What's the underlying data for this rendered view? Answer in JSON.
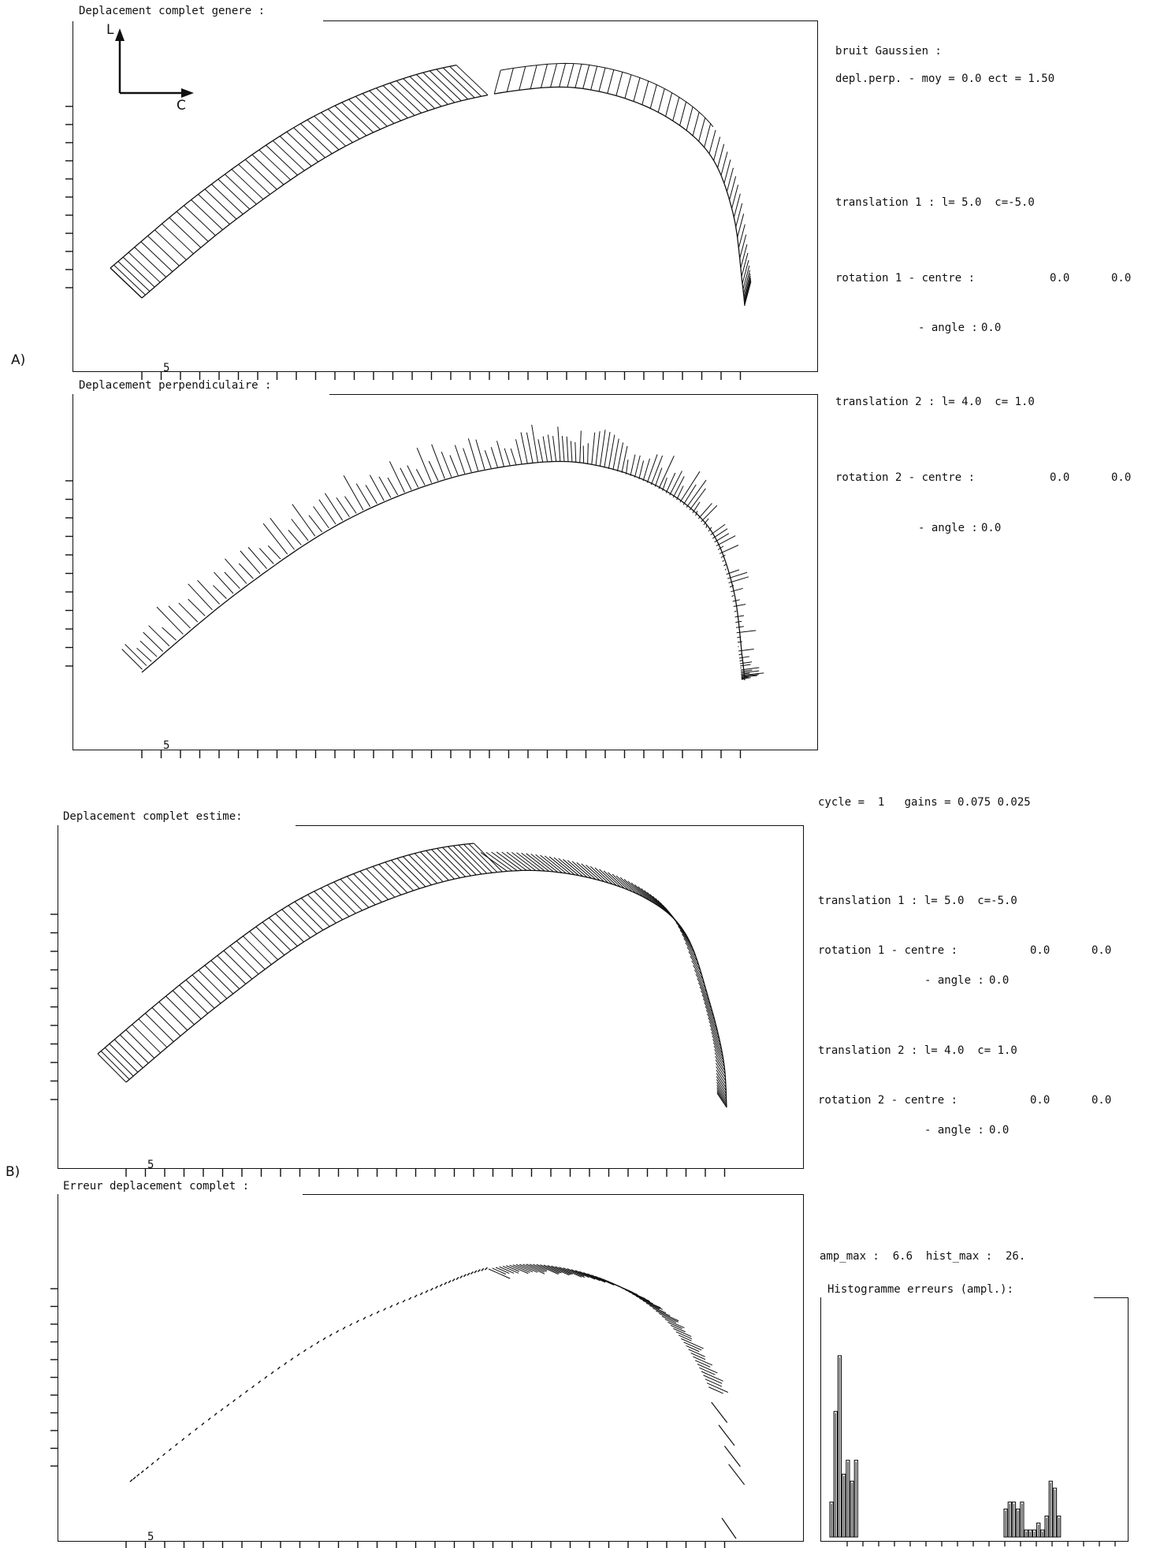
{
  "section_a_label": "A)",
  "section_b_label": "B)",
  "axis_labels": {
    "l": "L",
    "c": "C"
  },
  "tick_label": "5",
  "panels": {
    "gen": {
      "title": "Deplacement complet genere :"
    },
    "perp": {
      "title": "Deplacement perpendiculaire :"
    },
    "est": {
      "title": "Deplacement complet estime:"
    },
    "err": {
      "title": "Erreur deplacement complet :"
    },
    "hist": {
      "title": "Histogramme erreurs (ampl.):"
    }
  },
  "params_a": {
    "noise_title": "bruit Gaussien :",
    "noise_line": "depl.perp. - moy = 0.0 ect = 1.50",
    "translation1": "translation 1 : l= 5.0  c=-5.0",
    "rotation1_centre": "rotation 1 - centre :",
    "rotation1_centre_vals": [
      "0.0",
      "0.0"
    ],
    "rotation1_angle": "- angle :",
    "rotation1_angle_val": "0.0",
    "translation2": "translation 2 : l= 4.0  c= 1.0",
    "rotation2_centre": "rotation 2 - centre :",
    "rotation2_centre_vals": [
      "0.0",
      "0.0"
    ],
    "rotation2_angle": "- angle :",
    "rotation2_angle_val": "0.0"
  },
  "params_b": {
    "cycle_line": "cycle =  1   gains = 0.075 0.025",
    "translation1": "translation 1 : l= 5.0  c=-5.0",
    "rotation1_centre": "rotation 1 - centre :",
    "rotation1_centre_vals": [
      "0.0",
      "0.0"
    ],
    "rotation1_angle": "- angle :",
    "rotation1_angle_val": "0.0",
    "translation2": "translation 2 : l= 4.0  c= 1.0",
    "rotation2_centre": "rotation 2 - centre :",
    "rotation2_centre_vals": [
      "0.0",
      "0.0"
    ],
    "rotation2_angle": "- angle :",
    "rotation2_angle_val": "0.0",
    "amp_line": "amp_max :  6.6  hist_max :  26."
  },
  "histogram": {
    "bins_left": [
      5,
      18,
      26,
      9,
      11,
      8,
      11
    ],
    "bins_right": [
      4,
      5,
      5,
      4,
      5,
      1,
      1,
      1,
      2,
      1,
      3,
      8,
      7,
      3
    ]
  },
  "colors": {
    "ink": "#111111",
    "paper": "#ffffff"
  }
}
